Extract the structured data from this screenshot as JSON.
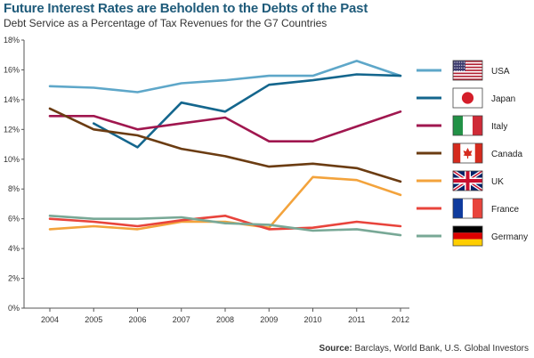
{
  "header": {
    "title": "Future Interest Rates are Beholden to the Debts of the Past",
    "subtitle": "Debt Service as a Percentage of Tax Revenues for the G7 Countries"
  },
  "footer": {
    "source_label": "Source:",
    "source_text": "Barclays, World Bank, U.S. Global Investors"
  },
  "chart_data": {
    "type": "line",
    "x": [
      "2004",
      "2005",
      "2006",
      "2007",
      "2008",
      "2009",
      "2010",
      "2011",
      "2012"
    ],
    "ylim": [
      0,
      18
    ],
    "yticks": [
      0,
      2,
      4,
      6,
      8,
      10,
      12,
      14,
      16,
      18
    ],
    "ytick_labels": [
      "0%",
      "2%",
      "4%",
      "6%",
      "8%",
      "10%",
      "12%",
      "14%",
      "16%",
      "18%"
    ],
    "grid": false,
    "legend": "right",
    "series": [
      {
        "name": "USA",
        "color": "#5ea7c9",
        "flag": "usa-flag-icon",
        "values": [
          14.9,
          14.8,
          14.5,
          15.1,
          15.3,
          15.6,
          15.6,
          16.6,
          15.6
        ]
      },
      {
        "name": "Japan",
        "color": "#14668d",
        "flag": "japan-flag-icon",
        "values": [
          null,
          12.4,
          10.8,
          13.8,
          13.2,
          15.0,
          15.3,
          15.7,
          15.6
        ]
      },
      {
        "name": "Italy",
        "color": "#a0174f",
        "flag": "italy-flag-icon",
        "values": [
          12.9,
          12.9,
          12.0,
          12.4,
          12.8,
          11.2,
          11.2,
          12.2,
          13.2
        ]
      },
      {
        "name": "Canada",
        "color": "#6b3c12",
        "flag": "canada-flag-icon",
        "values": [
          13.4,
          12.0,
          11.6,
          10.7,
          10.2,
          9.5,
          9.7,
          9.4,
          8.5
        ]
      },
      {
        "name": "UK",
        "color": "#f3a33c",
        "flag": "uk-flag-icon",
        "values": [
          5.3,
          5.5,
          5.3,
          5.8,
          5.8,
          5.4,
          8.8,
          8.6,
          7.6
        ]
      },
      {
        "name": "France",
        "color": "#e8443c",
        "flag": "france-flag-icon",
        "values": [
          6.0,
          5.8,
          5.5,
          5.9,
          6.2,
          5.3,
          5.4,
          5.8,
          5.5
        ]
      },
      {
        "name": "Germany",
        "color": "#78a896",
        "flag": "germany-flag-icon",
        "values": [
          6.2,
          6.0,
          6.0,
          6.1,
          5.7,
          5.6,
          5.2,
          5.3,
          4.9
        ]
      }
    ]
  }
}
